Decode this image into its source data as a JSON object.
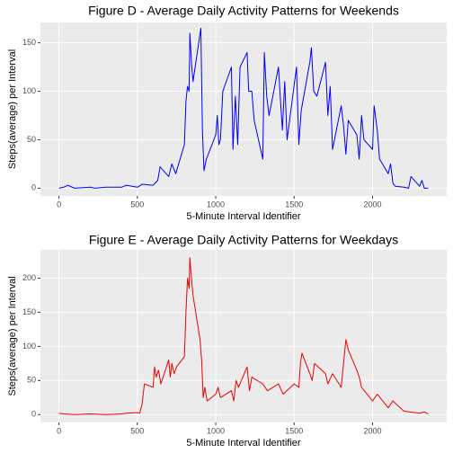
{
  "chart_data": [
    {
      "type": "line",
      "title": "Figure D - Average Daily Activity Patterns for Weekends",
      "x_label": "5-Minute Interval Identifier",
      "y_label": "Steps(average) per Interval",
      "color": "#0000ff",
      "x": [
        0,
        30,
        55,
        100,
        200,
        230,
        300,
        400,
        430,
        500,
        530,
        600,
        630,
        645,
        700,
        720,
        745,
        800,
        810,
        820,
        830,
        835,
        845,
        855,
        905,
        915,
        925,
        940,
        1000,
        1010,
        1020,
        1030,
        1045,
        1100,
        1110,
        1125,
        1140,
        1155,
        1200,
        1210,
        1230,
        1245,
        1300,
        1310,
        1325,
        1340,
        1400,
        1415,
        1425,
        1440,
        1455,
        1515,
        1530,
        1545,
        1600,
        1610,
        1625,
        1645,
        1700,
        1715,
        1730,
        1745,
        1800,
        1815,
        1830,
        1845,
        1900,
        1915,
        1930,
        1945,
        2000,
        2010,
        2030,
        2045,
        2100,
        2115,
        2130,
        2145,
        2200,
        2230,
        2245,
        2300,
        2315,
        2330,
        2355
      ],
      "values": [
        0,
        1,
        3,
        0,
        1,
        0,
        1,
        1,
        3,
        1,
        4,
        3,
        8,
        22,
        12,
        25,
        15,
        45,
        90,
        105,
        100,
        160,
        130,
        110,
        165,
        60,
        18,
        30,
        55,
        75,
        45,
        50,
        100,
        125,
        40,
        95,
        45,
        125,
        140,
        100,
        100,
        70,
        30,
        140,
        95,
        75,
        125,
        85,
        60,
        110,
        50,
        125,
        45,
        80,
        130,
        145,
        100,
        95,
        130,
        75,
        105,
        40,
        85,
        65,
        35,
        70,
        55,
        30,
        75,
        50,
        40,
        85,
        60,
        30,
        15,
        25,
        5,
        2,
        1,
        0,
        12,
        2,
        8,
        0,
        0
      ],
      "xlim": [
        -118,
        2473
      ],
      "ylim": [
        -8,
        171
      ],
      "xticks": [
        0,
        500,
        1000,
        1500,
        2000
      ],
      "yticks": [
        0,
        50,
        100,
        150
      ],
      "grid": true
    },
    {
      "type": "line",
      "title": "Figure E - Average Daily Activity Patterns for Weekdays",
      "x_label": "5-Minute Interval Identifier",
      "y_label": "Steps(average) per Interval",
      "color": "#ee0000",
      "x": [
        0,
        30,
        100,
        200,
        300,
        400,
        430,
        500,
        515,
        530,
        545,
        600,
        610,
        620,
        635,
        650,
        700,
        710,
        720,
        735,
        750,
        800,
        810,
        820,
        830,
        835,
        845,
        855,
        900,
        910,
        920,
        930,
        945,
        1000,
        1015,
        1030,
        1100,
        1115,
        1130,
        1145,
        1200,
        1215,
        1230,
        1300,
        1330,
        1400,
        1430,
        1500,
        1530,
        1540,
        1550,
        1600,
        1615,
        1630,
        1700,
        1715,
        1745,
        1800,
        1815,
        1830,
        1845,
        1900,
        1915,
        1930,
        2000,
        2030,
        2100,
        2130,
        2200,
        2300,
        2330,
        2355
      ],
      "values": [
        2,
        1,
        0,
        1,
        0,
        1,
        2,
        3,
        2,
        15,
        45,
        40,
        70,
        55,
        65,
        45,
        80,
        55,
        75,
        60,
        70,
        85,
        150,
        200,
        185,
        230,
        200,
        175,
        110,
        80,
        25,
        40,
        20,
        30,
        40,
        25,
        35,
        20,
        50,
        40,
        70,
        35,
        55,
        45,
        35,
        45,
        30,
        45,
        40,
        75,
        90,
        60,
        50,
        75,
        60,
        45,
        60,
        40,
        75,
        110,
        95,
        65,
        55,
        40,
        20,
        30,
        10,
        20,
        5,
        2,
        4,
        1
      ],
      "xlim": [
        -118,
        2473
      ],
      "ylim": [
        -11.5,
        241.5
      ],
      "xticks": [
        0,
        500,
        1000,
        1500,
        2000
      ],
      "yticks": [
        0,
        50,
        100,
        150,
        200
      ],
      "grid": true
    }
  ]
}
